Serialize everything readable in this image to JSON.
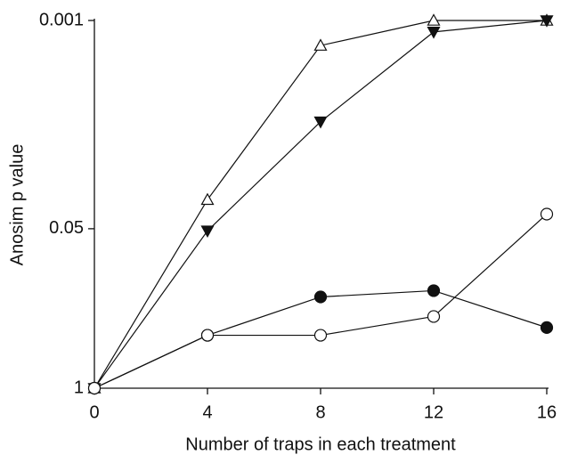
{
  "chart_data": {
    "type": "line",
    "x_label": "Number of traps in each treatment",
    "y_label": "Anosim p value",
    "log_y": true,
    "xlim": [
      0,
      16
    ],
    "xticks": [
      0,
      4,
      8,
      12,
      16
    ],
    "ylim": [
      1,
      0.001
    ],
    "yticks": [
      1,
      0.05,
      0.001
    ],
    "series": [
      {
        "color": "#111111",
        "marker": "triangle-up-open",
        "x": [
          0,
          4,
          8,
          12,
          16
        ],
        "values": [
          1,
          0.029,
          0.0016,
          0.001,
          0.001
        ]
      },
      {
        "color": "#111111",
        "marker": "triangle-down-filled",
        "x": [
          0,
          4,
          8,
          12,
          16
        ],
        "values": [
          1,
          0.052,
          0.0067,
          0.00124,
          0.001
        ]
      },
      {
        "color": "#111111",
        "marker": "circle-filled",
        "x": [
          0,
          4,
          8,
          12,
          16
        ],
        "values": [
          1,
          0.37,
          0.18,
          0.16,
          0.32
        ]
      },
      {
        "color": "#111111",
        "marker": "circle-open",
        "x": [
          0,
          4,
          8,
          12,
          16
        ],
        "values": [
          1,
          0.37,
          0.37,
          0.26,
          0.038
        ]
      }
    ]
  }
}
